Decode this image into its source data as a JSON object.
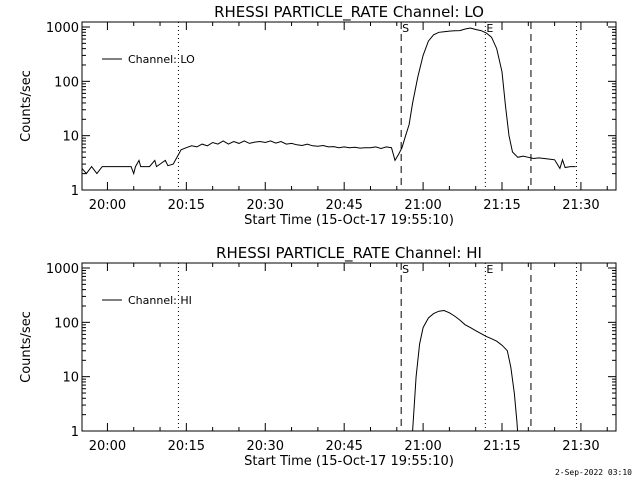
{
  "footer": "2-Sep-2022 03:10",
  "chart_data": [
    {
      "type": "line",
      "title": "RHESSI PARTICLE_RATE Channel: LO",
      "xlabel": "Start Time (15-Oct-17 19:55:10)",
      "ylabel": "Counts/sec",
      "yscale": "log",
      "ylim": [
        1,
        1000
      ],
      "xlim": [
        "19:55:10",
        "21:36:40"
      ],
      "x_tick_labels": [
        "20:00",
        "20:15",
        "20:30",
        "20:45",
        "21:00",
        "21:15",
        "21:30"
      ],
      "y_tick_labels": [
        "1",
        "10",
        "100",
        "1000"
      ],
      "legend": {
        "label": "Channel: LO",
        "placement": "top-left"
      },
      "markers": [
        {
          "time": "20:13:30",
          "style": "dotted",
          "label": ""
        },
        {
          "time": "20:55:50",
          "style": "dashed",
          "label": "S"
        },
        {
          "time": "21:11:50",
          "style": "dotted",
          "label": "E"
        },
        {
          "time": "21:20:30",
          "style": "dashed",
          "label": ""
        },
        {
          "time": "21:29:10",
          "style": "dotted",
          "label": ""
        }
      ],
      "series": [
        {
          "name": "Channel: LO",
          "points": [
            [
              "19:55:10",
              2.5
            ],
            [
              "19:56:00",
              2.0
            ],
            [
              "19:57:00",
              2.7
            ],
            [
              "19:58:00",
              2.0
            ],
            [
              "19:59:00",
              2.7
            ],
            [
              "20:00:00",
              2.7
            ],
            [
              "20:03:00",
              2.7
            ],
            [
              "20:04:30",
              2.7
            ],
            [
              "20:05:00",
              2.0
            ],
            [
              "20:05:20",
              2.7
            ],
            [
              "20:06:00",
              3.5
            ],
            [
              "20:06:20",
              2.7
            ],
            [
              "20:08:00",
              2.7
            ],
            [
              "20:09:00",
              3.5
            ],
            [
              "20:09:20",
              2.7
            ],
            [
              "20:11:00",
              3.5
            ],
            [
              "20:11:30",
              2.8
            ],
            [
              "20:12:30",
              3.0
            ],
            [
              "20:13:30",
              4.5
            ],
            [
              "20:14:00",
              5.5
            ],
            [
              "20:15:00",
              6.0
            ],
            [
              "20:16:00",
              6.5
            ],
            [
              "20:17:00",
              6.2
            ],
            [
              "20:18:00",
              7.0
            ],
            [
              "20:19:00",
              6.5
            ],
            [
              "20:20:00",
              7.5
            ],
            [
              "20:21:00",
              7.0
            ],
            [
              "20:22:00",
              8.0
            ],
            [
              "20:23:00",
              7.0
            ],
            [
              "20:24:00",
              7.8
            ],
            [
              "20:25:00",
              7.2
            ],
            [
              "20:26:00",
              8.0
            ],
            [
              "20:27:00",
              7.2
            ],
            [
              "20:28:00",
              7.6
            ],
            [
              "20:29:00",
              7.8
            ],
            [
              "20:30:00",
              7.5
            ],
            [
              "20:31:00",
              8.0
            ],
            [
              "20:32:00",
              7.3
            ],
            [
              "20:33:00",
              7.8
            ],
            [
              "20:34:00",
              7.0
            ],
            [
              "20:35:00",
              7.2
            ],
            [
              "20:36:00",
              6.8
            ],
            [
              "20:37:00",
              6.6
            ],
            [
              "20:38:00",
              7.0
            ],
            [
              "20:39:00",
              6.5
            ],
            [
              "20:40:00",
              6.4
            ],
            [
              "20:41:00",
              6.6
            ],
            [
              "20:42:00",
              6.2
            ],
            [
              "20:43:00",
              6.3
            ],
            [
              "20:44:00",
              6.0
            ],
            [
              "20:45:00",
              6.2
            ],
            [
              "20:46:00",
              6.0
            ],
            [
              "20:47:00",
              6.1
            ],
            [
              "20:48:00",
              5.9
            ],
            [
              "20:49:00",
              6.0
            ],
            [
              "20:50:00",
              6.0
            ],
            [
              "20:51:00",
              6.2
            ],
            [
              "20:52:00",
              5.8
            ],
            [
              "20:53:00",
              6.2
            ],
            [
              "20:54:00",
              6.0
            ],
            [
              "20:54:40",
              3.5
            ],
            [
              "20:55:20",
              4.5
            ],
            [
              "20:56:00",
              6.0
            ],
            [
              "20:56:40",
              10
            ],
            [
              "20:57:20",
              16
            ],
            [
              "20:58:00",
              40
            ],
            [
              "20:59:00",
              120
            ],
            [
              "21:00:00",
              300
            ],
            [
              "21:01:00",
              550
            ],
            [
              "21:02:00",
              720
            ],
            [
              "21:03:00",
              800
            ],
            [
              "21:04:00",
              820
            ],
            [
              "21:05:00",
              840
            ],
            [
              "21:06:00",
              850
            ],
            [
              "21:07:00",
              860
            ],
            [
              "21:08:00",
              920
            ],
            [
              "21:09:00",
              960
            ],
            [
              "21:10:00",
              900
            ],
            [
              "21:11:00",
              860
            ],
            [
              "21:12:00",
              780
            ],
            [
              "21:13:00",
              650
            ],
            [
              "21:14:00",
              400
            ],
            [
              "21:15:00",
              150
            ],
            [
              "21:15:40",
              35
            ],
            [
              "21:16:20",
              10
            ],
            [
              "21:17:00",
              5.0
            ],
            [
              "21:18:00",
              4.0
            ],
            [
              "21:19:00",
              4.2
            ],
            [
              "21:20:00",
              4.0
            ],
            [
              "21:21:00",
              3.8
            ],
            [
              "21:22:00",
              3.9
            ],
            [
              "21:23:00",
              3.8
            ],
            [
              "21:24:00",
              3.7
            ],
            [
              "21:25:00",
              3.6
            ],
            [
              "21:26:00",
              2.5
            ],
            [
              "21:26:30",
              3.6
            ],
            [
              "21:27:00",
              2.6
            ],
            [
              "21:28:00",
              2.7
            ],
            [
              "21:29:00",
              2.7
            ]
          ]
        }
      ]
    },
    {
      "type": "line",
      "title": "RHESSI PARTICLE_RATE Channel: HI",
      "xlabel": "Start Time (15-Oct-17 19:55:10)",
      "ylabel": "Counts/sec",
      "yscale": "log",
      "ylim": [
        1,
        1000
      ],
      "xlim": [
        "19:55:10",
        "21:36:40"
      ],
      "x_tick_labels": [
        "20:00",
        "20:15",
        "20:30",
        "20:45",
        "21:00",
        "21:15",
        "21:30"
      ],
      "y_tick_labels": [
        "1",
        "10",
        "100",
        "1000"
      ],
      "legend": {
        "label": "Channel: HI",
        "placement": "top-left"
      },
      "markers": [
        {
          "time": "20:13:30",
          "style": "dotted",
          "label": ""
        },
        {
          "time": "20:55:50",
          "style": "dashed",
          "label": "S"
        },
        {
          "time": "21:11:50",
          "style": "dotted",
          "label": "E"
        },
        {
          "time": "21:20:30",
          "style": "dashed",
          "label": ""
        },
        {
          "time": "21:29:10",
          "style": "dotted",
          "label": ""
        }
      ],
      "series": [
        {
          "name": "Channel: HI",
          "points": [
            [
              "20:57:30",
              0.5
            ],
            [
              "20:58:00",
              1.0
            ],
            [
              "20:58:40",
              10
            ],
            [
              "20:59:20",
              40
            ],
            [
              "21:00:00",
              80
            ],
            [
              "21:01:00",
              120
            ],
            [
              "21:02:00",
              145
            ],
            [
              "21:03:00",
              160
            ],
            [
              "21:04:00",
              165
            ],
            [
              "21:05:00",
              150
            ],
            [
              "21:06:00",
              130
            ],
            [
              "21:07:00",
              110
            ],
            [
              "21:08:00",
              90
            ],
            [
              "21:09:00",
              80
            ],
            [
              "21:10:00",
              70
            ],
            [
              "21:11:00",
              62
            ],
            [
              "21:12:00",
              55
            ],
            [
              "21:13:00",
              50
            ],
            [
              "21:14:00",
              45
            ],
            [
              "21:15:00",
              38
            ],
            [
              "21:16:00",
              30
            ],
            [
              "21:16:40",
              15
            ],
            [
              "21:17:20",
              5.0
            ],
            [
              "21:17:50",
              1.5
            ],
            [
              "21:18:10",
              0.5
            ]
          ]
        }
      ]
    }
  ]
}
